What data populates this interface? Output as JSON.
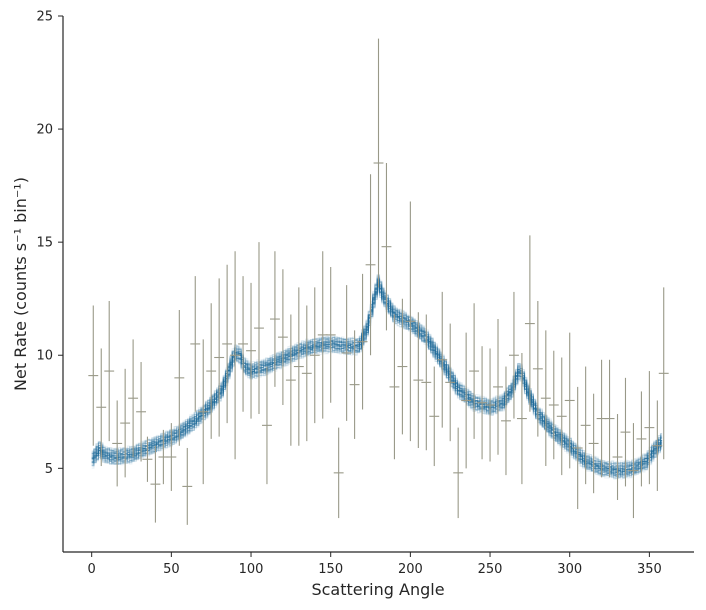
{
  "chart_data": {
    "type": "scatter",
    "title": "",
    "xlabel": "Scattering Angle",
    "ylabel": "Net Rate (counts s⁻¹ bin⁻¹)",
    "xlim": [
      -18,
      378
    ],
    "ylim": [
      1.3,
      25
    ],
    "xticks": [
      0,
      50,
      100,
      150,
      200,
      250,
      300,
      350
    ],
    "yticks": [
      5,
      10,
      15,
      20,
      25
    ],
    "grid": false,
    "legend": "none",
    "colors": {
      "data": "#999988",
      "model": "#1f6b9a",
      "axis": "#262626"
    },
    "series": [
      {
        "kind": "data-with-errorbars",
        "bin_halfwidth": 3.1,
        "points": [
          [
            1,
            9.1,
            3.1
          ],
          [
            6,
            7.7,
            2.6
          ],
          [
            11,
            9.3,
            3.1
          ],
          [
            16,
            6.1,
            1.9
          ],
          [
            21,
            7.0,
            2.4
          ],
          [
            26,
            8.1,
            2.6
          ],
          [
            31,
            7.5,
            2.2
          ],
          [
            35,
            5.4,
            1.0
          ],
          [
            40,
            4.3,
            1.7
          ],
          [
            45,
            5.5,
            1.2
          ],
          [
            50,
            5.5,
            1.5
          ],
          [
            55,
            9.0,
            3.0
          ],
          [
            60,
            4.2,
            1.7
          ],
          [
            65,
            10.5,
            3.0
          ],
          [
            70,
            7.5,
            3.2
          ],
          [
            75,
            9.3,
            3.0
          ],
          [
            80,
            9.9,
            3.5
          ],
          [
            85,
            10.5,
            3.5
          ],
          [
            90,
            10.0,
            4.6
          ],
          [
            95,
            10.5,
            3.0
          ],
          [
            100,
            10.2,
            3.0
          ],
          [
            105,
            11.2,
            3.8
          ],
          [
            110,
            6.9,
            2.6
          ],
          [
            115,
            11.6,
            3.0
          ],
          [
            120,
            10.8,
            3.0
          ],
          [
            125,
            8.9,
            2.9
          ],
          [
            130,
            9.5,
            3.5
          ],
          [
            135,
            9.2,
            3.0
          ],
          [
            140,
            10.0,
            3.0
          ],
          [
            145,
            10.9,
            3.7
          ],
          [
            150,
            10.9,
            3.0
          ],
          [
            155,
            4.8,
            2.0
          ],
          [
            160,
            10.1,
            3.0
          ],
          [
            165,
            8.7,
            2.4
          ],
          [
            170,
            10.6,
            3.0
          ],
          [
            175,
            14.0,
            4.0
          ],
          [
            180,
            18.5,
            5.5
          ],
          [
            185,
            14.8,
            3.7
          ],
          [
            190,
            8.6,
            3.2
          ],
          [
            195,
            9.5,
            3.0
          ],
          [
            200,
            11.5,
            5.3
          ],
          [
            205,
            8.9,
            3.0
          ],
          [
            210,
            8.8,
            3.0
          ],
          [
            215,
            7.3,
            2.2
          ],
          [
            220,
            9.8,
            3.0
          ],
          [
            225,
            8.8,
            2.6
          ],
          [
            230,
            4.8,
            2.0
          ],
          [
            235,
            8.0,
            3.0
          ],
          [
            240,
            9.3,
            3.0
          ],
          [
            245,
            7.9,
            2.5
          ],
          [
            250,
            7.8,
            2.5
          ],
          [
            255,
            8.6,
            3.0
          ],
          [
            260,
            7.1,
            2.4
          ],
          [
            265,
            10.0,
            2.8
          ],
          [
            270,
            7.2,
            2.9
          ],
          [
            275,
            11.4,
            3.9
          ],
          [
            280,
            9.4,
            3.0
          ],
          [
            285,
            8.1,
            3.0
          ],
          [
            290,
            7.8,
            2.4
          ],
          [
            295,
            7.3,
            2.6
          ],
          [
            300,
            8.0,
            3.0
          ],
          [
            305,
            5.9,
            2.7
          ],
          [
            310,
            6.9,
            2.6
          ],
          [
            315,
            6.1,
            2.2
          ],
          [
            320,
            7.2,
            2.6
          ],
          [
            325,
            7.2,
            2.6
          ],
          [
            330,
            5.5,
            1.9
          ],
          [
            335,
            6.6,
            2.4
          ],
          [
            340,
            4.9,
            2.1
          ],
          [
            345,
            6.3,
            2.1
          ],
          [
            350,
            6.8,
            2.5
          ],
          [
            355,
            6.0,
            2.0
          ],
          [
            359,
            9.2,
            3.8
          ]
        ]
      },
      {
        "kind": "model-band",
        "band_spread": 0.35,
        "points": [
          [
            0,
            5.35
          ],
          [
            5,
            5.85
          ],
          [
            8,
            5.6
          ],
          [
            15,
            5.5
          ],
          [
            25,
            5.6
          ],
          [
            35,
            5.9
          ],
          [
            45,
            6.2
          ],
          [
            55,
            6.55
          ],
          [
            65,
            7.1
          ],
          [
            75,
            7.8
          ],
          [
            82,
            8.5
          ],
          [
            86,
            9.3
          ],
          [
            90,
            10.1
          ],
          [
            93,
            10.0
          ],
          [
            96,
            9.5
          ],
          [
            100,
            9.3
          ],
          [
            110,
            9.5
          ],
          [
            120,
            9.85
          ],
          [
            130,
            10.2
          ],
          [
            140,
            10.4
          ],
          [
            150,
            10.5
          ],
          [
            160,
            10.4
          ],
          [
            168,
            10.4
          ],
          [
            173,
            11.2
          ],
          [
            178,
            12.7
          ],
          [
            180,
            13.2
          ],
          [
            183,
            12.6
          ],
          [
            190,
            11.8
          ],
          [
            200,
            11.4
          ],
          [
            210,
            10.8
          ],
          [
            220,
            9.7
          ],
          [
            230,
            8.5
          ],
          [
            240,
            7.9
          ],
          [
            250,
            7.7
          ],
          [
            258,
            7.9
          ],
          [
            264,
            8.5
          ],
          [
            268,
            9.3
          ],
          [
            270,
            9.2
          ],
          [
            273,
            8.5
          ],
          [
            280,
            7.4
          ],
          [
            290,
            6.6
          ],
          [
            300,
            6.0
          ],
          [
            310,
            5.3
          ],
          [
            320,
            5.0
          ],
          [
            330,
            4.9
          ],
          [
            340,
            5.0
          ],
          [
            348,
            5.3
          ],
          [
            353,
            5.8
          ],
          [
            358,
            6.2
          ]
        ]
      }
    ]
  }
}
